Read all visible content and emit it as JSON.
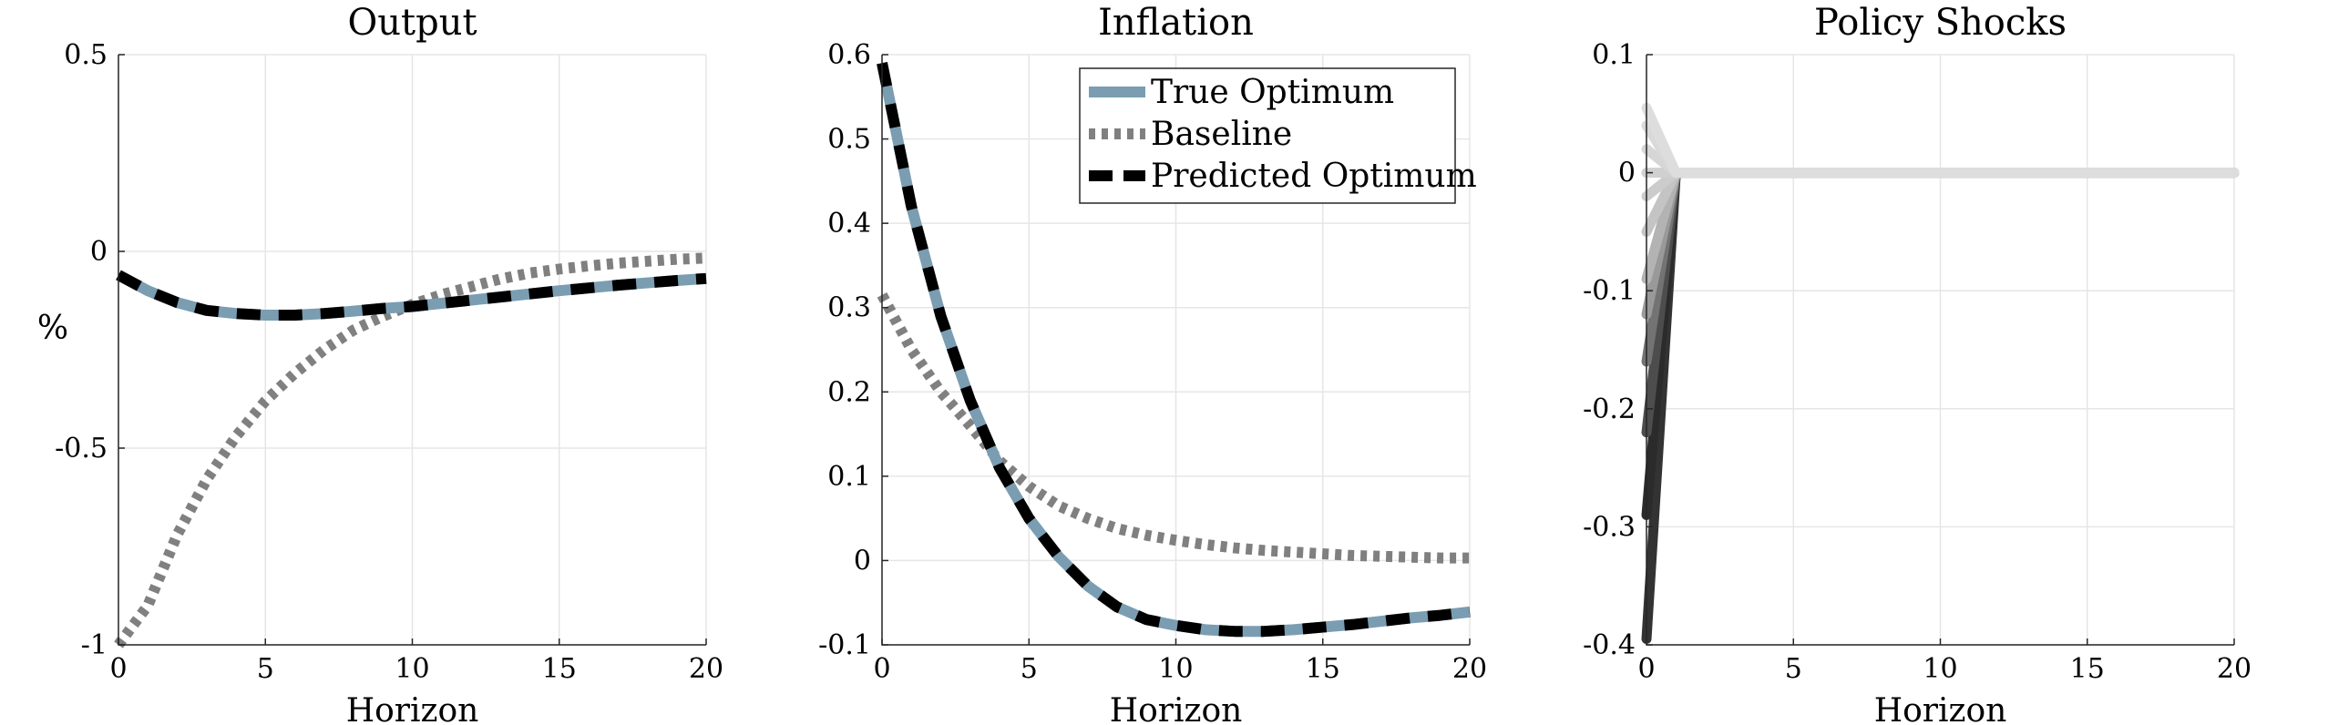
{
  "chart_data": [
    {
      "type": "line",
      "title": "Output",
      "xlabel": "Horizon",
      "ylabel": "%",
      "xlim": [
        0,
        20
      ],
      "ylim": [
        -1,
        0.5
      ],
      "xticks": [
        0,
        5,
        10,
        15,
        20
      ],
      "yticks": [
        -1,
        -0.5,
        0,
        0.5
      ],
      "ytick_labels": [
        "-1",
        "-0.5",
        "0",
        "0.5"
      ],
      "grid": true,
      "series": [
        {
          "name": "Baseline",
          "style": "dotted",
          "color": "#808080",
          "x": [
            0,
            1,
            2,
            3,
            4,
            5,
            6,
            7,
            8,
            9,
            10,
            11,
            12,
            13,
            14,
            15,
            16,
            17,
            18,
            19,
            20
          ],
          "y": [
            -1.0,
            -0.9,
            -0.72,
            -0.58,
            -0.47,
            -0.38,
            -0.31,
            -0.25,
            -0.2,
            -0.165,
            -0.135,
            -0.11,
            -0.09,
            -0.07,
            -0.055,
            -0.045,
            -0.037,
            -0.03,
            -0.025,
            -0.02,
            -0.017
          ]
        },
        {
          "name": "True Optimum",
          "style": "solid",
          "color": "#7a9db2",
          "x": [
            0,
            1,
            2,
            3,
            4,
            5,
            6,
            7,
            8,
            9,
            10,
            11,
            12,
            13,
            14,
            15,
            16,
            17,
            18,
            19,
            20
          ],
          "y": [
            -0.06,
            -0.1,
            -0.13,
            -0.15,
            -0.158,
            -0.162,
            -0.162,
            -0.158,
            -0.152,
            -0.145,
            -0.14,
            -0.132,
            -0.124,
            -0.116,
            -0.108,
            -0.1,
            -0.093,
            -0.086,
            -0.08,
            -0.074,
            -0.069
          ]
        },
        {
          "name": "Predicted Optimum",
          "style": "dashed",
          "color": "#000000",
          "x": [
            0,
            1,
            2,
            3,
            4,
            5,
            6,
            7,
            8,
            9,
            10,
            11,
            12,
            13,
            14,
            15,
            16,
            17,
            18,
            19,
            20
          ],
          "y": [
            -0.06,
            -0.1,
            -0.13,
            -0.15,
            -0.158,
            -0.162,
            -0.162,
            -0.158,
            -0.152,
            -0.145,
            -0.14,
            -0.132,
            -0.124,
            -0.116,
            -0.108,
            -0.1,
            -0.093,
            -0.086,
            -0.08,
            -0.074,
            -0.069
          ]
        }
      ]
    },
    {
      "type": "line",
      "title": "Inflation",
      "xlabel": "Horizon",
      "ylabel": "",
      "xlim": [
        0,
        20
      ],
      "ylim": [
        -0.1,
        0.6
      ],
      "xticks": [
        0,
        5,
        10,
        15,
        20
      ],
      "yticks": [
        -0.1,
        0,
        0.1,
        0.2,
        0.3,
        0.4,
        0.5,
        0.6
      ],
      "ytick_labels": [
        "-0.1",
        "0",
        "0.1",
        "0.2",
        "0.3",
        "0.4",
        "0.5",
        "0.6"
      ],
      "grid": true,
      "legend": {
        "placement": "top-right",
        "entries": [
          "True Optimum",
          "Baseline",
          "Predicted Optimum"
        ]
      },
      "series": [
        {
          "name": "Baseline",
          "style": "dotted",
          "color": "#808080",
          "x": [
            0,
            1,
            2,
            3,
            4,
            5,
            6,
            7,
            8,
            9,
            10,
            11,
            12,
            13,
            14,
            15,
            16,
            17,
            18,
            19,
            20
          ],
          "y": [
            0.315,
            0.25,
            0.2,
            0.16,
            0.118,
            0.088,
            0.065,
            0.05,
            0.038,
            0.03,
            0.024,
            0.019,
            0.015,
            0.012,
            0.01,
            0.008,
            0.006,
            0.005,
            0.004,
            0.003,
            0.003
          ]
        },
        {
          "name": "True Optimum",
          "style": "solid",
          "color": "#7a9db2",
          "x": [
            0,
            1,
            2,
            3,
            4,
            5,
            6,
            7,
            8,
            9,
            10,
            11,
            12,
            13,
            14,
            15,
            16,
            17,
            18,
            19,
            20
          ],
          "y": [
            0.59,
            0.42,
            0.29,
            0.19,
            0.11,
            0.05,
            0.005,
            -0.03,
            -0.055,
            -0.07,
            -0.077,
            -0.082,
            -0.084,
            -0.084,
            -0.082,
            -0.079,
            -0.076,
            -0.072,
            -0.068,
            -0.065,
            -0.061
          ]
        },
        {
          "name": "Predicted Optimum",
          "style": "dashed",
          "color": "#000000",
          "x": [
            0,
            1,
            2,
            3,
            4,
            5,
            6,
            7,
            8,
            9,
            10,
            11,
            12,
            13,
            14,
            15,
            16,
            17,
            18,
            19,
            20
          ],
          "y": [
            0.59,
            0.42,
            0.29,
            0.19,
            0.11,
            0.05,
            0.005,
            -0.03,
            -0.055,
            -0.07,
            -0.077,
            -0.082,
            -0.084,
            -0.084,
            -0.082,
            -0.079,
            -0.076,
            -0.072,
            -0.068,
            -0.065,
            -0.061
          ]
        }
      ]
    },
    {
      "type": "line",
      "title": "Policy Shocks",
      "xlabel": "Horizon",
      "ylabel": "",
      "xlim": [
        0,
        20
      ],
      "ylim": [
        -0.4,
        0.1
      ],
      "xticks": [
        0,
        5,
        10,
        15,
        20
      ],
      "yticks": [
        -0.4,
        -0.3,
        -0.2,
        -0.1,
        0,
        0.1
      ],
      "ytick_labels": [
        "-0.4",
        "-0.3",
        "-0.2",
        "-0.1",
        "0",
        "0.1"
      ],
      "grid": true,
      "series": [
        {
          "color": "#333333",
          "x": [
            0,
            1,
            20
          ],
          "y": [
            -0.395,
            0,
            0
          ]
        },
        {
          "color": "#2b2b2b",
          "x": [
            0,
            1,
            20
          ],
          "y": [
            -0.29,
            0,
            0
          ]
        },
        {
          "color": "#4d4d4d",
          "x": [
            0,
            1,
            20
          ],
          "y": [
            -0.22,
            0,
            0
          ]
        },
        {
          "color": "#737373",
          "x": [
            0,
            1,
            20
          ],
          "y": [
            -0.16,
            0,
            0
          ]
        },
        {
          "color": "#999999",
          "x": [
            0,
            1,
            20
          ],
          "y": [
            -0.12,
            0,
            0
          ]
        },
        {
          "color": "#b3b3b3",
          "x": [
            0,
            1,
            20
          ],
          "y": [
            -0.09,
            0,
            0
          ]
        },
        {
          "color": "#c4c4c4",
          "x": [
            0,
            1,
            20
          ],
          "y": [
            -0.05,
            0,
            0
          ]
        },
        {
          "color": "#cccccc",
          "x": [
            0,
            1,
            20
          ],
          "y": [
            -0.02,
            0,
            0
          ]
        },
        {
          "color": "#d0d0d0",
          "x": [
            0,
            1,
            20
          ],
          "y": [
            0.0,
            0,
            0
          ]
        },
        {
          "color": "#d6d6d6",
          "x": [
            0,
            1,
            20
          ],
          "y": [
            0.02,
            0,
            0
          ]
        },
        {
          "color": "#d9d9d9",
          "x": [
            0,
            1,
            20
          ],
          "y": [
            0.04,
            0,
            0
          ]
        },
        {
          "color": "#dddddd",
          "x": [
            0,
            1,
            20
          ],
          "y": [
            0.055,
            0,
            0
          ]
        }
      ]
    }
  ]
}
